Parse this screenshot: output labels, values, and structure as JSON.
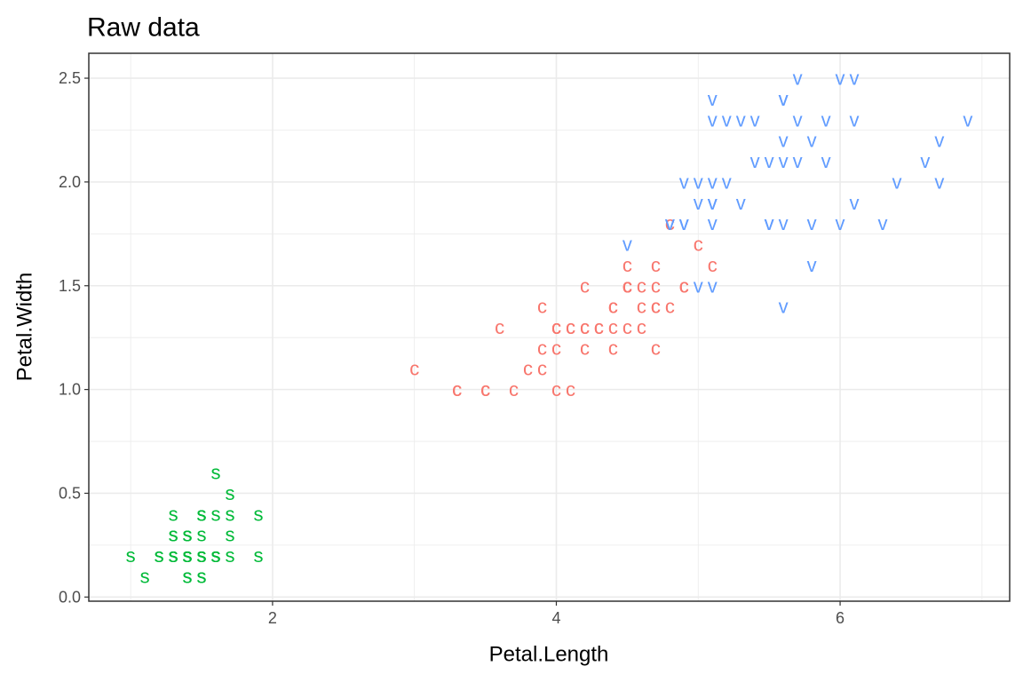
{
  "chart_data": {
    "type": "scatter",
    "title": "Raw data",
    "x_label": "Petal.Length",
    "y_label": "Petal.Width",
    "xlim": [
      0.705,
      7.195
    ],
    "ylim": [
      -0.02,
      2.62
    ],
    "xticks": [
      2,
      4,
      6
    ],
    "yticks": [
      {
        "value": 0,
        "label": "0.0"
      },
      0.5,
      {
        "value": 1,
        "label": "1.0"
      },
      1.5,
      {
        "value": 2,
        "label": "2.0"
      },
      2.5
    ],
    "x_minor_grid": [
      1,
      3,
      5,
      7
    ],
    "y_minor_grid": [
      0.25,
      0.75,
      1.25,
      1.75,
      2.25
    ],
    "grid": true,
    "legend": false,
    "series": [
      {
        "name": "s",
        "color": "#00ba38",
        "x": [
          1.4,
          1.4,
          1.3,
          1.5,
          1.4,
          1.7,
          1.4,
          1.5,
          1.4,
          1.5,
          1.5,
          1.6,
          1.4,
          1.1,
          1.2,
          1.5,
          1.3,
          1.4,
          1.7,
          1.5,
          1.7,
          1.5,
          1.0,
          1.7,
          1.9,
          1.6,
          1.6,
          1.5,
          1.4,
          1.6,
          1.6,
          1.5,
          1.5,
          1.4,
          1.5,
          1.2,
          1.3,
          1.4,
          1.3,
          1.5,
          1.3,
          1.3,
          1.3,
          1.6,
          1.9,
          1.4,
          1.6,
          1.4,
          1.5,
          1.4
        ],
        "values": [
          0.2,
          0.2,
          0.2,
          0.2,
          0.2,
          0.4,
          0.3,
          0.2,
          0.2,
          0.1,
          0.2,
          0.2,
          0.1,
          0.1,
          0.2,
          0.4,
          0.4,
          0.3,
          0.3,
          0.3,
          0.2,
          0.4,
          0.2,
          0.5,
          0.2,
          0.2,
          0.4,
          0.2,
          0.2,
          0.2,
          0.2,
          0.4,
          0.1,
          0.2,
          0.2,
          0.2,
          0.2,
          0.1,
          0.2,
          0.2,
          0.3,
          0.3,
          0.2,
          0.6,
          0.4,
          0.3,
          0.2,
          0.2,
          0.2,
          0.2
        ]
      },
      {
        "name": "c",
        "color": "#f8766d",
        "x": [
          4.7,
          4.5,
          4.9,
          4.0,
          4.6,
          4.5,
          4.7,
          3.3,
          4.6,
          3.9,
          3.5,
          4.2,
          4.0,
          4.7,
          3.6,
          4.4,
          4.5,
          4.1,
          4.5,
          3.9,
          4.8,
          4.0,
          4.9,
          4.7,
          4.3,
          4.4,
          4.8,
          5.0,
          4.5,
          3.5,
          3.8,
          3.7,
          3.9,
          5.1,
          4.5,
          4.5,
          4.7,
          4.4,
          4.1,
          4.0,
          4.4,
          4.6,
          4.0,
          3.3,
          4.2,
          4.2,
          4.2,
          4.3,
          3.0,
          4.1
        ],
        "values": [
          1.4,
          1.5,
          1.5,
          1.3,
          1.5,
          1.3,
          1.6,
          1.0,
          1.3,
          1.4,
          1.0,
          1.5,
          1.0,
          1.4,
          1.3,
          1.4,
          1.5,
          1.0,
          1.5,
          1.1,
          1.8,
          1.3,
          1.5,
          1.2,
          1.3,
          1.4,
          1.4,
          1.7,
          1.5,
          1.0,
          1.1,
          1.0,
          1.2,
          1.6,
          1.5,
          1.6,
          1.5,
          1.3,
          1.3,
          1.3,
          1.2,
          1.4,
          1.2,
          1.0,
          1.3,
          1.2,
          1.3,
          1.3,
          1.1,
          1.3
        ]
      },
      {
        "name": "v",
        "color": "#619cff",
        "x": [
          6.0,
          5.1,
          5.9,
          5.6,
          5.8,
          6.6,
          4.5,
          6.3,
          5.8,
          6.1,
          5.1,
          5.3,
          5.5,
          5.0,
          5.1,
          5.3,
          5.5,
          6.7,
          6.9,
          5.0,
          5.7,
          4.9,
          6.7,
          4.9,
          5.7,
          6.0,
          4.8,
          4.9,
          5.6,
          5.8,
          6.1,
          6.4,
          5.6,
          5.1,
          5.6,
          6.1,
          5.6,
          5.5,
          4.8,
          5.4,
          5.6,
          5.1,
          5.1,
          5.9,
          5.7,
          5.2,
          5.0,
          5.2,
          5.4,
          5.1
        ],
        "values": [
          2.5,
          1.9,
          2.1,
          1.8,
          2.2,
          2.1,
          1.7,
          1.8,
          1.8,
          2.5,
          2.0,
          1.9,
          2.1,
          2.0,
          2.4,
          2.3,
          1.8,
          2.2,
          2.3,
          1.5,
          2.3,
          2.0,
          2.0,
          1.8,
          2.1,
          1.8,
          1.8,
          1.8,
          2.1,
          1.6,
          1.9,
          2.0,
          2.2,
          1.5,
          1.4,
          2.3,
          2.4,
          1.8,
          1.8,
          2.1,
          2.4,
          2.3,
          1.9,
          2.3,
          2.5,
          2.3,
          1.9,
          2.0,
          2.3,
          1.8
        ]
      }
    ]
  }
}
